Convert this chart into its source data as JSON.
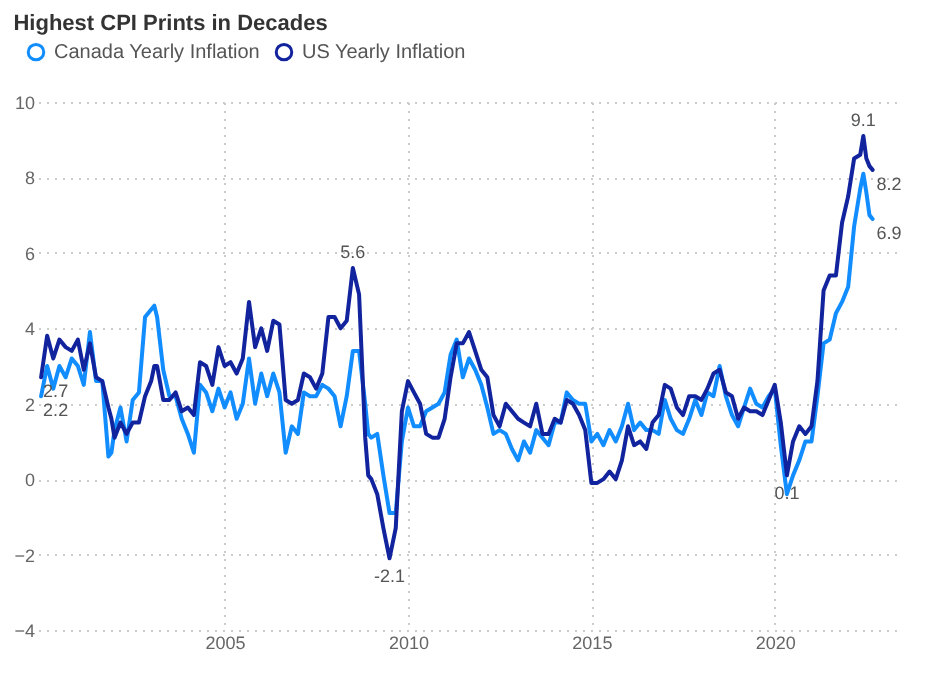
{
  "chart_data": {
    "type": "line",
    "title": "Highest CPI Prints in Decades",
    "x": [
      "2000-01",
      "2000-03",
      "2000-05",
      "2000-07",
      "2000-09",
      "2000-11",
      "2001-01",
      "2001-03",
      "2001-05",
      "2001-07",
      "2001-09",
      "2001-11",
      "2001-12",
      "2002-01",
      "2002-03",
      "2002-05",
      "2002-07",
      "2002-09",
      "2002-11",
      "2003-01",
      "2003-02",
      "2003-03",
      "2003-05",
      "2003-07",
      "2003-09",
      "2003-11",
      "2004-01",
      "2004-03",
      "2004-05",
      "2004-07",
      "2004-09",
      "2004-11",
      "2005-01",
      "2005-03",
      "2005-05",
      "2005-07",
      "2005-09",
      "2005-11",
      "2006-01",
      "2006-03",
      "2006-05",
      "2006-07",
      "2006-09",
      "2006-11",
      "2007-01",
      "2007-03",
      "2007-05",
      "2007-07",
      "2007-09",
      "2007-11",
      "2008-01",
      "2008-03",
      "2008-05",
      "2008-07",
      "2008-09",
      "2008-11",
      "2008-12",
      "2009-01",
      "2009-03",
      "2009-05",
      "2009-07",
      "2009-09",
      "2009-11",
      "2010-01",
      "2010-03",
      "2010-05",
      "2010-07",
      "2010-09",
      "2010-11",
      "2011-01",
      "2011-03",
      "2011-05",
      "2011-07",
      "2011-09",
      "2011-11",
      "2012-01",
      "2012-03",
      "2012-05",
      "2012-07",
      "2012-09",
      "2012-11",
      "2013-01",
      "2013-03",
      "2013-05",
      "2013-07",
      "2013-09",
      "2013-11",
      "2014-01",
      "2014-03",
      "2014-05",
      "2014-07",
      "2014-09",
      "2014-11",
      "2015-01",
      "2015-03",
      "2015-05",
      "2015-07",
      "2015-09",
      "2015-11",
      "2016-01",
      "2016-03",
      "2016-05",
      "2016-07",
      "2016-09",
      "2016-11",
      "2017-01",
      "2017-03",
      "2017-05",
      "2017-07",
      "2017-09",
      "2017-11",
      "2018-01",
      "2018-03",
      "2018-05",
      "2018-07",
      "2018-09",
      "2018-11",
      "2019-01",
      "2019-03",
      "2019-05",
      "2019-07",
      "2019-09",
      "2019-11",
      "2020-01",
      "2020-03",
      "2020-05",
      "2020-07",
      "2020-09",
      "2020-11",
      "2021-01",
      "2021-03",
      "2021-05",
      "2021-07",
      "2021-09",
      "2021-11",
      "2022-01",
      "2022-03",
      "2022-05",
      "2022-06",
      "2022-07",
      "2022-08",
      "2022-09"
    ],
    "series": [
      {
        "name": "Canada Yearly Inflation",
        "color": "#118dff",
        "values": [
          2.2,
          3.0,
          2.4,
          3.0,
          2.7,
          3.2,
          3.0,
          2.5,
          3.9,
          2.6,
          2.6,
          0.6,
          0.7,
          1.3,
          1.9,
          1.0,
          2.1,
          2.3,
          4.3,
          4.5,
          4.6,
          4.3,
          2.9,
          2.2,
          2.2,
          1.6,
          1.2,
          0.7,
          2.5,
          2.3,
          1.8,
          2.4,
          1.9,
          2.3,
          1.6,
          2.0,
          3.2,
          2.0,
          2.8,
          2.2,
          2.8,
          2.3,
          0.7,
          1.4,
          1.2,
          2.3,
          2.2,
          2.2,
          2.5,
          2.4,
          2.2,
          1.4,
          2.2,
          3.4,
          3.4,
          2.0,
          1.2,
          1.1,
          1.2,
          0.1,
          -0.9,
          -0.9,
          1.0,
          1.9,
          1.4,
          1.4,
          1.8,
          1.9,
          2.0,
          2.3,
          3.3,
          3.7,
          2.7,
          3.2,
          2.9,
          2.5,
          1.9,
          1.2,
          1.3,
          1.2,
          0.8,
          0.5,
          1.0,
          0.7,
          1.3,
          1.1,
          0.9,
          1.5,
          1.5,
          2.3,
          2.1,
          2.0,
          2.0,
          1.0,
          1.2,
          0.9,
          1.3,
          1.0,
          1.4,
          2.0,
          1.3,
          1.5,
          1.3,
          1.3,
          1.2,
          2.1,
          1.6,
          1.3,
          1.2,
          1.6,
          2.1,
          1.7,
          2.3,
          2.2,
          3.0,
          2.2,
          1.7,
          1.4,
          1.9,
          2.4,
          2.0,
          1.9,
          2.2,
          2.4,
          0.9,
          -0.4,
          0.1,
          0.5,
          1.0,
          1.0,
          2.2,
          3.6,
          3.7,
          4.4,
          4.7,
          5.1,
          6.7,
          7.7,
          8.1,
          7.6,
          7.0,
          6.9
        ]
      },
      {
        "name": "US Yearly Inflation",
        "color": "#12239e",
        "values": [
          2.7,
          3.8,
          3.2,
          3.7,
          3.5,
          3.4,
          3.7,
          2.9,
          3.6,
          2.7,
          2.6,
          1.9,
          1.6,
          1.1,
          1.5,
          1.2,
          1.5,
          1.5,
          2.2,
          2.6,
          3.0,
          3.0,
          2.1,
          2.1,
          2.3,
          1.8,
          1.9,
          1.7,
          3.1,
          3.0,
          2.5,
          3.5,
          3.0,
          3.1,
          2.8,
          3.2,
          4.7,
          3.5,
          4.0,
          3.4,
          4.2,
          4.1,
          2.1,
          2.0,
          2.1,
          2.8,
          2.7,
          2.4,
          2.8,
          4.3,
          4.3,
          4.0,
          4.2,
          5.6,
          4.9,
          1.1,
          0.1,
          0.0,
          -0.4,
          -1.3,
          -2.1,
          -1.3,
          1.8,
          2.6,
          2.3,
          2.0,
          1.2,
          1.1,
          1.1,
          1.6,
          2.7,
          3.6,
          3.6,
          3.9,
          3.4,
          2.9,
          2.7,
          1.7,
          1.4,
          2.0,
          1.8,
          1.6,
          1.5,
          1.4,
          2.0,
          1.2,
          1.2,
          1.6,
          1.5,
          2.1,
          2.0,
          1.7,
          1.3,
          -0.1,
          -0.1,
          0.0,
          0.2,
          0.0,
          0.5,
          1.4,
          0.9,
          1.0,
          0.8,
          1.5,
          1.7,
          2.5,
          2.4,
          1.9,
          1.7,
          2.2,
          2.2,
          2.1,
          2.4,
          2.8,
          2.9,
          2.3,
          2.2,
          1.6,
          1.9,
          1.8,
          1.8,
          1.7,
          2.1,
          2.5,
          1.5,
          0.1,
          1.0,
          1.4,
          1.2,
          1.4,
          2.6,
          5.0,
          5.4,
          5.4,
          6.8,
          7.5,
          8.5,
          8.6,
          9.1,
          8.5,
          8.3,
          8.2
        ]
      }
    ],
    "xlim": [
      "1999-12",
      "2023-06"
    ],
    "xticks": [
      "2005",
      "2010",
      "2015",
      "2020"
    ],
    "ylim": [
      -4,
      10
    ],
    "yticks": [
      -4,
      -2,
      0,
      2,
      4,
      6,
      8,
      10
    ],
    "grid": true,
    "legend": "top left",
    "annotations": [
      {
        "text": "2.7",
        "x": "2000-01",
        "y": 2.7
      },
      {
        "text": "2.2",
        "x": "2000-01",
        "y": 2.2
      },
      {
        "text": "5.6",
        "x": "2008-07",
        "y": 5.6
      },
      {
        "text": "-2.1",
        "x": "2009-07",
        "y": -2.1
      },
      {
        "text": "0.1",
        "x": "2020-05",
        "y": 0.1
      },
      {
        "text": "9.1",
        "x": "2022-06",
        "y": 9.1
      },
      {
        "text": "8.2",
        "x": "2022-09",
        "y": 8.2
      },
      {
        "text": "6.9",
        "x": "2022-09",
        "y": 6.9
      }
    ]
  }
}
